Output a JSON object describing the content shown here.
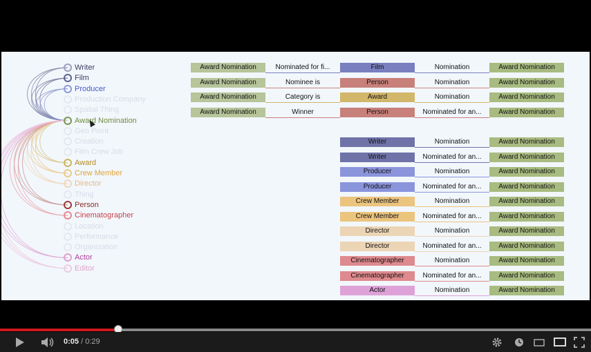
{
  "types": [
    {
      "label": "Writer",
      "color": "#3a3d63",
      "ring": "#9aa0bd",
      "active": true
    },
    {
      "label": "Film",
      "color": "#3a3d63",
      "ring": "#5b6290",
      "active": true
    },
    {
      "label": "Producer",
      "color": "#4758c4",
      "ring": "#8e99d8",
      "active": true
    },
    {
      "label": "Production Company",
      "color": "#d8dbe6",
      "ring": "#e6e8ee",
      "active": false
    },
    {
      "label": "Spatial Thing",
      "color": "#d8dbe6",
      "ring": "#e6e8ee",
      "active": false
    },
    {
      "label": "Award Nomination",
      "color": "#6f8a3f",
      "ring": "#7d9550",
      "active": true
    },
    {
      "label": "Geo Point",
      "color": "#d8dbe6",
      "ring": "#e6e8ee",
      "active": false
    },
    {
      "label": "Creation",
      "color": "#d8dbe6",
      "ring": "#e6e8ee",
      "active": false
    },
    {
      "label": "Film Crew Job",
      "color": "#d8dbe6",
      "ring": "#e6e8ee",
      "active": false
    },
    {
      "label": "Award",
      "color": "#b38a1f",
      "ring": "#d0b25a",
      "active": true
    },
    {
      "label": "Crew Member",
      "color": "#e0a53c",
      "ring": "#ebcb8a",
      "active": true
    },
    {
      "label": "Director",
      "color": "#e3b886",
      "ring": "#eed6b8",
      "active": true
    },
    {
      "label": "Thing",
      "color": "#d8dbe6",
      "ring": "#e6e8ee",
      "active": false
    },
    {
      "label": "Person",
      "color": "#8a2e2a",
      "ring": "#9b3c38",
      "active": true
    },
    {
      "label": "Cinematographer",
      "color": "#c4444e",
      "ring": "#e28a90",
      "active": true
    },
    {
      "label": "Location",
      "color": "#d8dbe6",
      "ring": "#e6e8ee",
      "active": false
    },
    {
      "label": "Performance",
      "color": "#d8dbe6",
      "ring": "#e6e8ee",
      "active": false
    },
    {
      "label": "Organization",
      "color": "#d8dbe6",
      "ring": "#e6e8ee",
      "active": false
    },
    {
      "label": "Actor",
      "color": "#b03e9a",
      "ring": "#dea0d0",
      "active": true
    },
    {
      "label": "Editor",
      "color": "#e0a6c8",
      "ring": "#eccde0",
      "active": true
    }
  ],
  "top_table": [
    {
      "c1": "Award Nomination",
      "c1_bg": "#b6c59a",
      "c2": "Nominated for fi...",
      "c3": "Film",
      "c3_bg": "#7a7fbf",
      "c4": "Nomination",
      "c5": "Award Nomination",
      "c5_bg": "#a8bb80"
    },
    {
      "c1": "Award Nomination",
      "c1_bg": "#b6c59a",
      "c2": "Nominee is",
      "c3": "Person",
      "c3_bg": "#c8807b",
      "c4": "Nomination",
      "c5": "Award Nomination",
      "c5_bg": "#a8bb80"
    },
    {
      "c1": "Award Nomination",
      "c1_bg": "#b6c59a",
      "c2": "Category is",
      "c3": "Award",
      "c3_bg": "#d2b66a",
      "c4": "Nomination",
      "c5": "Award Nomination",
      "c5_bg": "#a8bb80"
    },
    {
      "c1": "Award Nomination",
      "c1_bg": "#b6c59a",
      "c2": "Winner",
      "c3": "Person",
      "c3_bg": "#c8807b",
      "c4": "Nominated for an...",
      "c5": "Award Nomination",
      "c5_bg": "#a8bb80"
    }
  ],
  "bottom_table": [
    {
      "c3": "Writer",
      "c3_bg": "#6f73a8",
      "c4": "Nomination",
      "c5": "Award Nomination",
      "c5_bg": "#a8bb80"
    },
    {
      "c3": "Writer",
      "c3_bg": "#6f73a8",
      "c4": "Nominated for an...",
      "c5": "Award Nomination",
      "c5_bg": "#a8bb80"
    },
    {
      "c3": "Producer",
      "c3_bg": "#8b95dc",
      "c4": "Nomination",
      "c5": "Award Nomination",
      "c5_bg": "#a8bb80"
    },
    {
      "c3": "Producer",
      "c3_bg": "#8b95dc",
      "c4": "Nominated for an...",
      "c5": "Award Nomination",
      "c5_bg": "#a8bb80"
    },
    {
      "c3": "Crew Member",
      "c3_bg": "#ebc47e",
      "c4": "Nomination",
      "c5": "Award Nomination",
      "c5_bg": "#a8bb80"
    },
    {
      "c3": "Crew Member",
      "c3_bg": "#ebc47e",
      "c4": "Nominated for an...",
      "c5": "Award Nomination",
      "c5_bg": "#a8bb80"
    },
    {
      "c3": "Director",
      "c3_bg": "#ecd5b5",
      "c4": "Nomination",
      "c5": "Award Nomination",
      "c5_bg": "#a8bb80"
    },
    {
      "c3": "Director",
      "c3_bg": "#ecd5b5",
      "c4": "Nominated for an...",
      "c5": "Award Nomination",
      "c5_bg": "#a8bb80"
    },
    {
      "c3": "Cinematographer",
      "c3_bg": "#de8a8e",
      "c4": "Nomination",
      "c5": "Award Nomination",
      "c5_bg": "#a8bb80"
    },
    {
      "c3": "Cinematographer",
      "c3_bg": "#de8a8e",
      "c4": "Nominated for an...",
      "c5": "Award Nomination",
      "c5_bg": "#a8bb80"
    },
    {
      "c3": "Actor",
      "c3_bg": "#dfa2d8",
      "c4": "Nomination",
      "c5": "Award Nomination",
      "c5_bg": "#a8bb80"
    }
  ],
  "player": {
    "current_time": "0:05",
    "separator": " / ",
    "duration": "0:29",
    "progress": 0.2,
    "accent": "#cc181e"
  }
}
